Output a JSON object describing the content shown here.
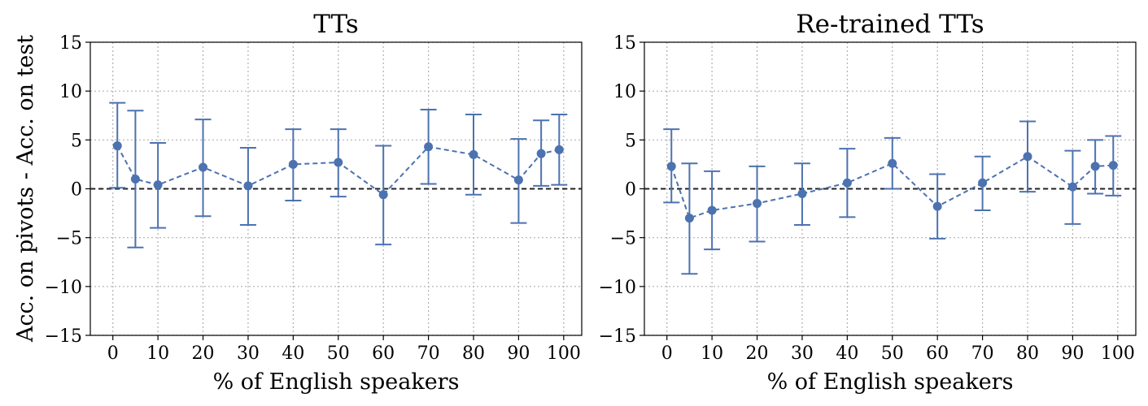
{
  "ylabel": "Acc. on pivots - Acc. on test",
  "chart_data": [
    {
      "type": "line",
      "title": "TTs",
      "xlabel": "% of English speakers",
      "ylabel": "Acc. on pivots - Acc. on test",
      "xlim": [
        -5,
        104
      ],
      "ylim": [
        -15,
        15
      ],
      "xticks": [
        0,
        10,
        20,
        30,
        40,
        50,
        60,
        70,
        80,
        90,
        100
      ],
      "yticks": [
        -15,
        -10,
        -5,
        0,
        5,
        10,
        15
      ],
      "grid": true,
      "reference_line_y": 0,
      "x": [
        1,
        5,
        10,
        20,
        30,
        40,
        50,
        60,
        70,
        80,
        90,
        95,
        99
      ],
      "series": [
        {
          "values": [
            4.4,
            1.0,
            0.4,
            2.2,
            0.3,
            2.5,
            2.7,
            -0.6,
            4.3,
            3.5,
            0.9,
            3.6,
            4.0
          ],
          "err_low": [
            0.1,
            -6.0,
            -4.0,
            -2.8,
            -3.7,
            -1.2,
            -0.8,
            -5.7,
            0.5,
            -0.6,
            -3.5,
            0.3,
            0.4
          ],
          "err_high": [
            8.8,
            8.0,
            4.7,
            7.1,
            4.2,
            6.1,
            6.1,
            4.4,
            8.1,
            7.6,
            5.1,
            7.0,
            7.6
          ]
        }
      ]
    },
    {
      "type": "line",
      "title": "Re-trained TTs",
      "xlabel": "% of English speakers",
      "ylabel": "",
      "xlim": [
        -5,
        104
      ],
      "ylim": [
        -15,
        15
      ],
      "xticks": [
        0,
        10,
        20,
        30,
        40,
        50,
        60,
        70,
        80,
        90,
        100
      ],
      "yticks": [
        -15,
        -10,
        -5,
        0,
        5,
        10,
        15
      ],
      "grid": true,
      "reference_line_y": 0,
      "x": [
        1,
        5,
        10,
        20,
        30,
        40,
        50,
        60,
        70,
        80,
        90,
        95,
        99
      ],
      "series": [
        {
          "values": [
            2.3,
            -3.0,
            -2.2,
            -1.5,
            -0.5,
            0.6,
            2.6,
            -1.8,
            0.6,
            3.3,
            0.2,
            2.3,
            2.4
          ],
          "err_low": [
            -1.4,
            -8.7,
            -6.2,
            -5.4,
            -3.7,
            -2.9,
            0.0,
            -5.1,
            -2.2,
            -0.3,
            -3.6,
            -0.5,
            -0.7
          ],
          "err_high": [
            6.1,
            2.6,
            1.8,
            2.3,
            2.6,
            4.1,
            5.2,
            1.5,
            3.3,
            6.9,
            3.9,
            5.0,
            5.4
          ]
        }
      ]
    }
  ]
}
